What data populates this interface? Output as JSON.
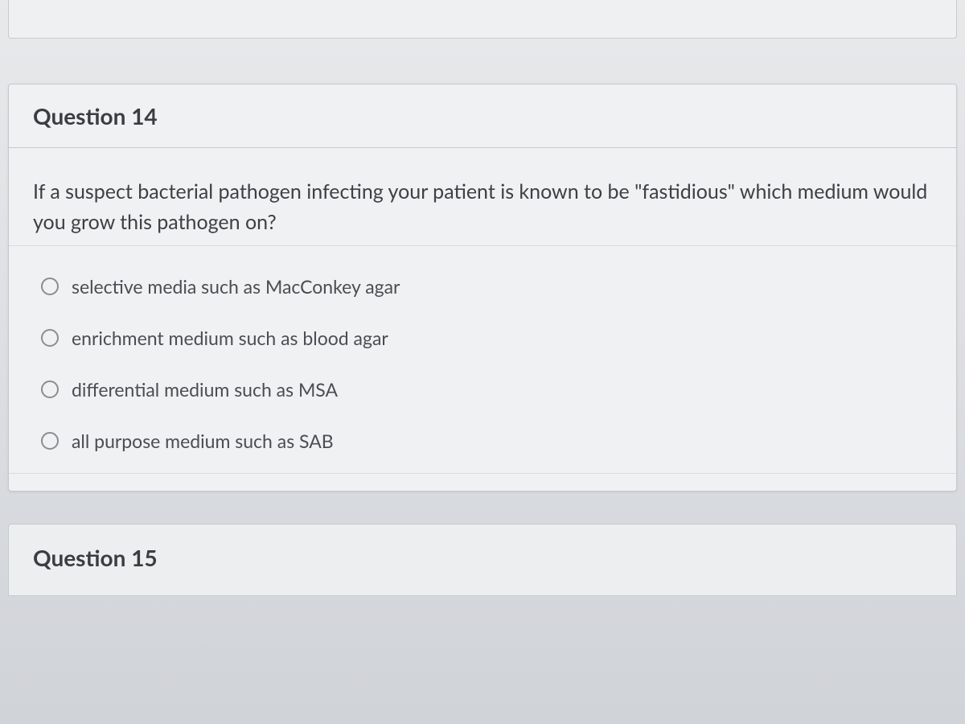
{
  "question14": {
    "title": "Question 14",
    "prompt": "If a suspect bacterial pathogen infecting your patient is known to be \"fastidious\" which medium would you grow this pathogen on?",
    "options": [
      {
        "label": "selective media such as MacConkey agar"
      },
      {
        "label": "enrichment medium such as blood agar"
      },
      {
        "label": "differential medium such as MSA"
      },
      {
        "label": "all purpose medium such as SAB"
      }
    ]
  },
  "question15": {
    "title": "Question 15"
  },
  "styling": {
    "background_gradient": [
      "#e8e9eb",
      "#dcdee2",
      "#d0d3d8"
    ],
    "card_bg": "#f0f1f3",
    "border_color": "#c6c8cc",
    "divider_color": "#c8cacf",
    "title_color": "#3a3d42",
    "text_color": "#3d4045",
    "option_text_color": "#4a4d52",
    "radio_border": "#8a8d92",
    "title_fontsize": 28,
    "body_fontsize": 25,
    "option_fontsize": 23,
    "title_weight": 700
  }
}
